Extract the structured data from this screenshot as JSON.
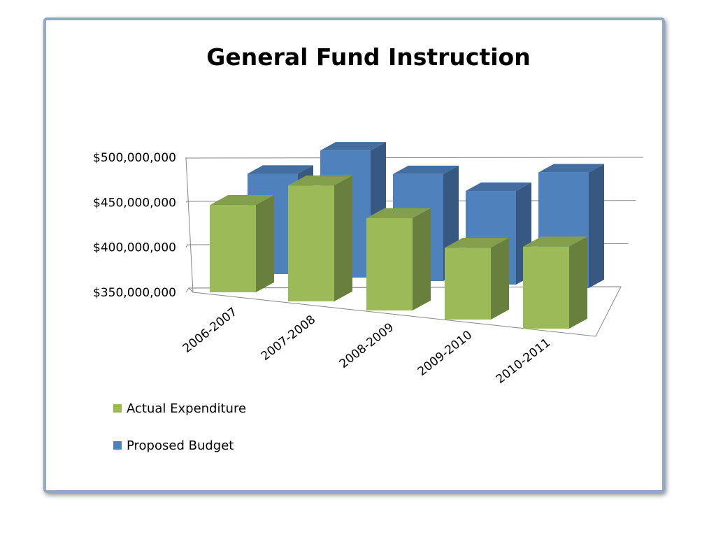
{
  "chart_data": {
    "type": "bar",
    "title": "General Fund Instruction",
    "categories": [
      "2006-2007",
      "2007-2008",
      "2008-2009",
      "2009-2010",
      "2010-2011"
    ],
    "series": [
      {
        "name": "Actual Expenditure",
        "values": [
          435000000,
          463000000,
          440000000,
          420000000,
          430000000
        ],
        "color": "#9bbb59"
      },
      {
        "name": "Proposed Budget",
        "values": [
          455000000,
          483000000,
          462000000,
          448000000,
          471000000
        ],
        "color": "#4f81bd"
      }
    ],
    "yticks": [
      "$350,000,000",
      "$400,000,000",
      "$450,000,000",
      "$500,000,000"
    ],
    "ylim": [
      350000000,
      500000000
    ],
    "xlabel": "",
    "ylabel": "",
    "grid": true,
    "legend_position": "bottom-left"
  }
}
